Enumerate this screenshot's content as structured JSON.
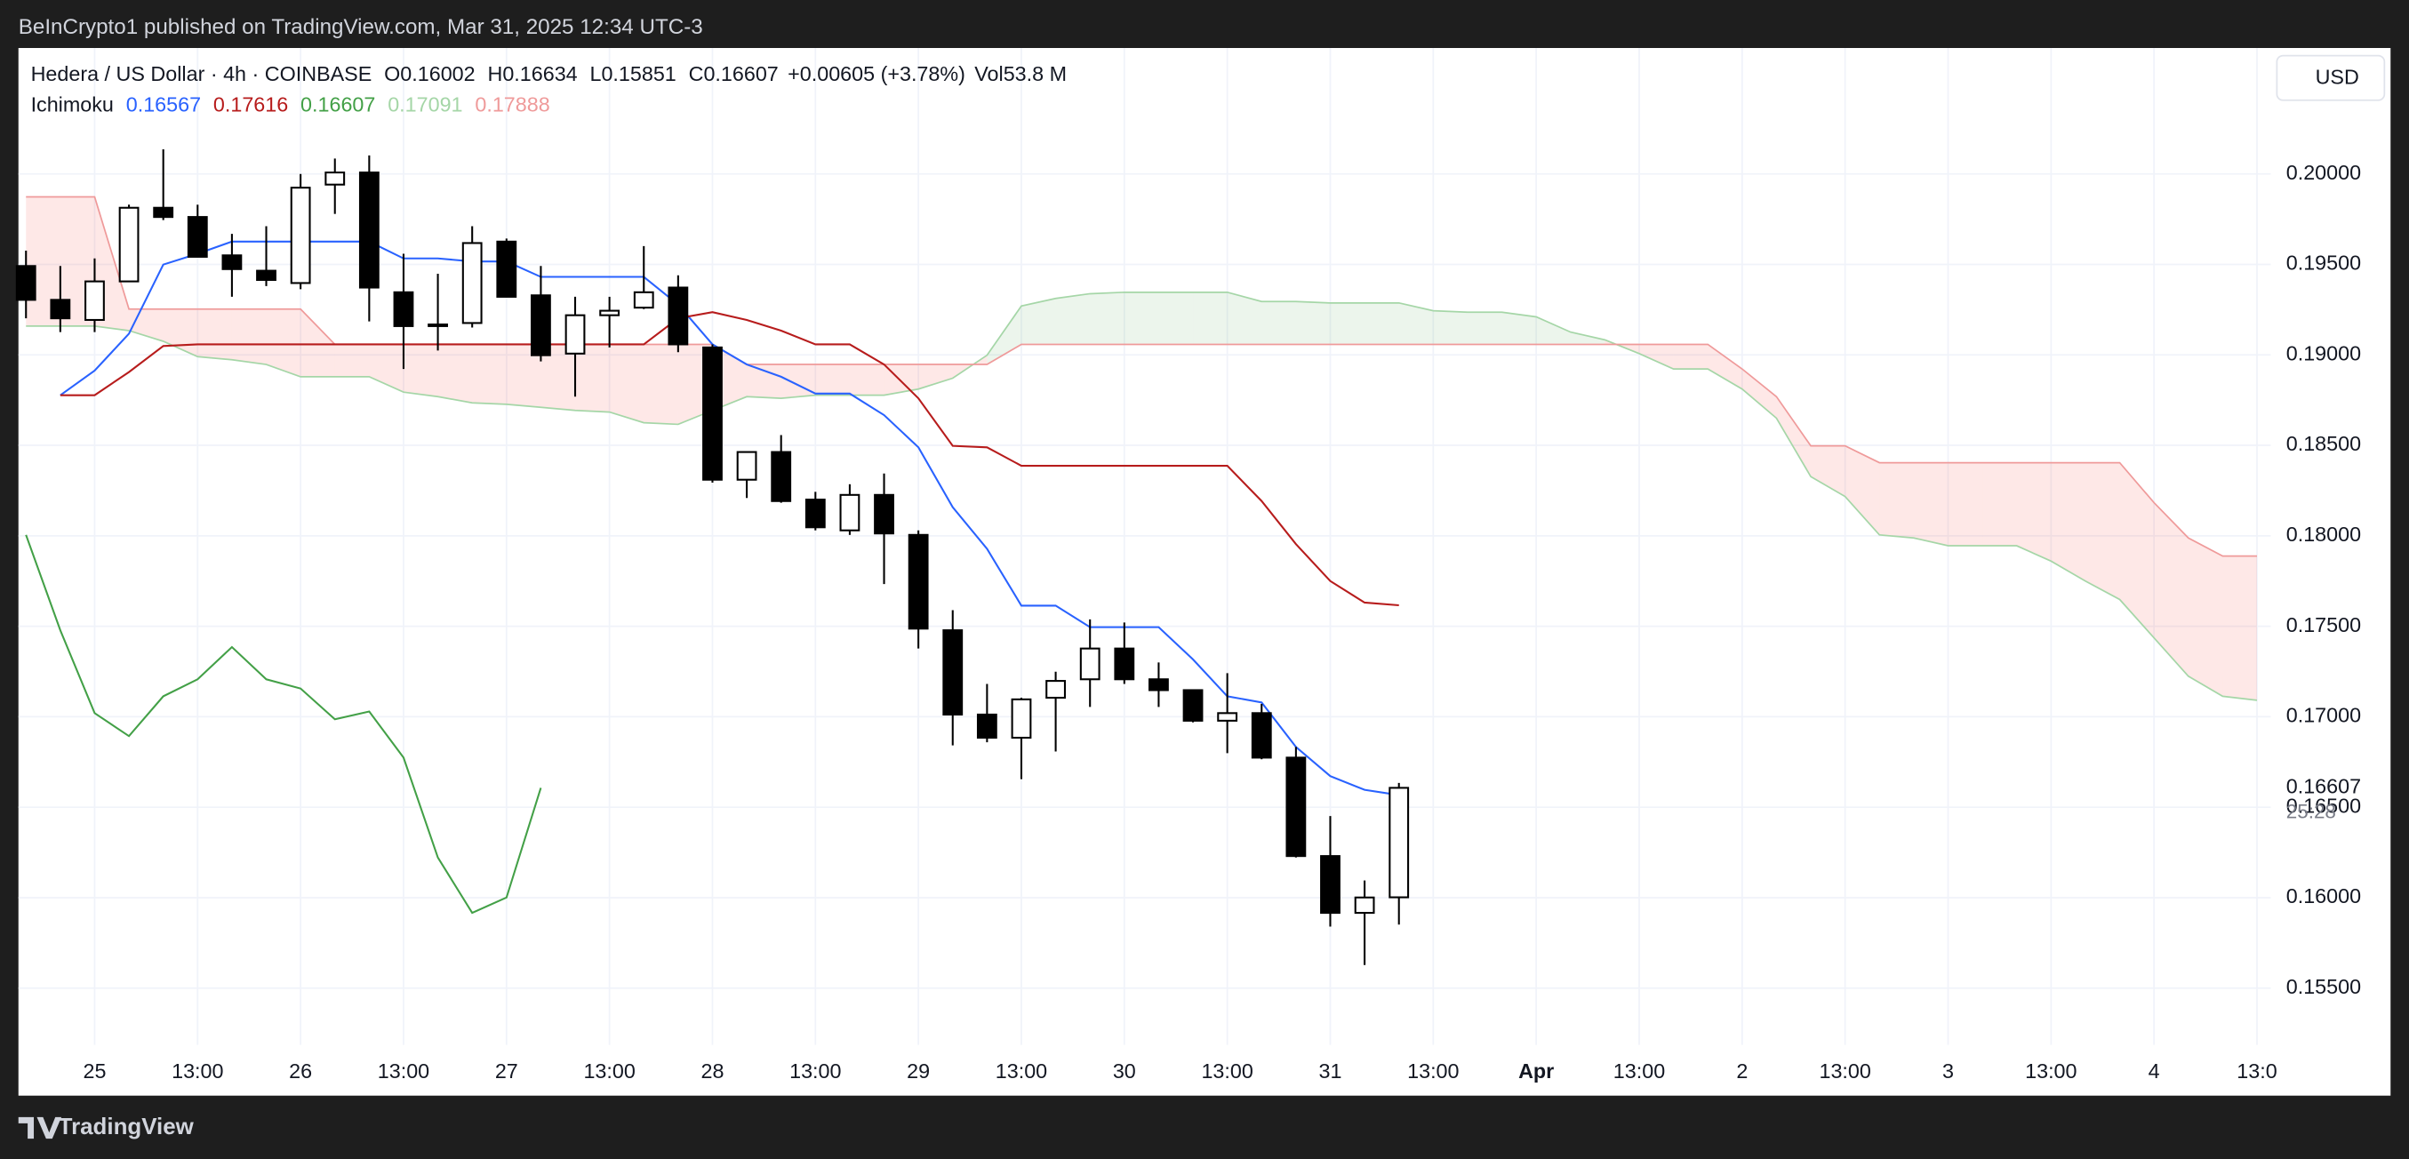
{
  "chart_data": {
    "type": "candlestick",
    "published": "BeInCrypto1 published on TradingView.com, Mar 31, 2025 12:34 UTC-3",
    "symbol": "Hedera / US Dollar · 4h · COINBASE",
    "ohlc_prefixes": [
      "O",
      "H",
      "L",
      "C"
    ],
    "change": "+0.00605 (+3.78%)",
    "volume": "Vol53.8 M",
    "indicator": "Ichimoku",
    "currency": "USD",
    "countdown": "25:28",
    "brand": "TradingView",
    "up_color": "#ffffff",
    "down_color": "#000000",
    "wick_color": "#000000",
    "x": [
      0,
      1,
      2,
      3,
      4,
      5,
      6,
      7,
      8,
      9,
      10,
      11,
      12,
      13,
      14,
      15,
      16,
      17,
      18,
      19,
      20,
      21,
      22,
      23,
      24,
      25,
      26,
      27,
      28,
      29,
      30,
      31,
      32,
      33,
      34,
      35,
      36,
      37,
      38,
      39,
      40
    ],
    "open": [
      0.19491,
      0.19304,
      0.19193,
      0.19406,
      0.19813,
      0.19762,
      0.1955,
      0.19465,
      0.19397,
      0.19941,
      0.20008,
      0.19346,
      0.19159,
      0.19176,
      0.19626,
      0.19329,
      0.19007,
      0.19219,
      0.19261,
      0.19372,
      0.19041,
      0.1831,
      0.18463,
      0.182,
      0.1803,
      0.18226,
      0.18005,
      0.17478,
      0.17012,
      0.16884,
      0.17105,
      0.17207,
      0.17377,
      0.17207,
      0.17147,
      0.16978,
      0.1702,
      0.16774,
      0.1623,
      0.15916,
      0.16002
    ],
    "high": [
      0.19576,
      0.19491,
      0.19533,
      0.1983,
      0.20136,
      0.1983,
      0.19669,
      0.19711,
      0.2,
      0.20085,
      0.20102,
      0.19559,
      0.19448,
      0.19711,
      0.19643,
      0.19491,
      0.19321,
      0.19321,
      0.19601,
      0.1944,
      0.19058,
      0.18463,
      0.18557,
      0.18243,
      0.18285,
      0.18344,
      0.1803,
      0.17589,
      0.17181,
      0.17105,
      0.17249,
      0.17538,
      0.17521,
      0.173,
      0.17147,
      0.17241,
      0.17071,
      0.16833,
      0.16451,
      0.16095,
      0.16634
    ],
    "low": [
      0.19202,
      0.19126,
      0.19126,
      0.19406,
      0.19745,
      0.19542,
      0.19321,
      0.1938,
      0.19363,
      0.19779,
      0.19185,
      0.18922,
      0.19024,
      0.19151,
      0.19321,
      0.18964,
      0.18769,
      0.19041,
      0.19253,
      0.19015,
      0.18294,
      0.18209,
      0.18183,
      0.1803,
      0.18005,
      0.17733,
      0.17377,
      0.16842,
      0.16859,
      0.16655,
      0.16808,
      0.17054,
      0.17181,
      0.17054,
      0.16969,
      0.16799,
      0.16765,
      0.16222,
      0.1584,
      0.15628,
      0.15851
    ],
    "close": [
      0.19304,
      0.19202,
      0.19406,
      0.19813,
      0.19762,
      0.19542,
      0.19474,
      0.19414,
      0.19924,
      0.20008,
      0.19372,
      0.19159,
      0.19168,
      0.19618,
      0.19321,
      0.18998,
      0.19219,
      0.19244,
      0.19346,
      0.19058,
      0.1831,
      0.18463,
      0.18192,
      0.18047,
      0.18226,
      0.18013,
      0.17487,
      0.17012,
      0.16884,
      0.17096,
      0.17198,
      0.17377,
      0.17207,
      0.17147,
      0.16978,
      0.1702,
      0.16774,
      0.1623,
      0.15916,
      0.16001,
      0.16607
    ],
    "lines": [
      {
        "color": "#2962ff",
        "x": [
          1,
          2,
          3,
          4,
          5,
          6,
          7,
          8,
          9,
          10,
          11,
          12,
          13,
          14,
          15,
          16,
          17,
          18,
          19,
          20,
          21,
          22,
          23,
          24,
          25,
          26,
          27,
          28,
          29,
          30,
          31,
          32,
          33,
          34,
          35,
          36,
          37,
          38,
          39,
          40
        ],
        "values": [
          0.18777,
          0.18913,
          0.19117,
          0.19499,
          0.19559,
          0.19626,
          0.19626,
          0.19626,
          0.19626,
          0.19626,
          0.19533,
          0.19533,
          0.19516,
          0.19516,
          0.19431,
          0.19431,
          0.19431,
          0.19431,
          0.19278,
          0.19058,
          0.18947,
          0.18879,
          0.18786,
          0.18786,
          0.18667,
          0.18489,
          0.18158,
          0.17928,
          0.17614,
          0.17614,
          0.17495,
          0.17495,
          0.17495,
          0.17317,
          0.17113,
          0.17079,
          0.16833,
          0.16672,
          0.16596,
          0.16567
        ]
      },
      {
        "color": "#b71c1c",
        "x": [
          1,
          2,
          3,
          4,
          5,
          6,
          7,
          8,
          9,
          10,
          11,
          12,
          13,
          14,
          15,
          16,
          17,
          18,
          19,
          20,
          21,
          22,
          23,
          24,
          25,
          26,
          27,
          28,
          29,
          30,
          31,
          32,
          33,
          34,
          35,
          36,
          37,
          38,
          39,
          40
        ],
        "values": [
          0.18777,
          0.18777,
          0.18905,
          0.19049,
          0.19058,
          0.19058,
          0.19058,
          0.19058,
          0.19058,
          0.19058,
          0.19058,
          0.19058,
          0.19058,
          0.19058,
          0.19058,
          0.19058,
          0.19058,
          0.19058,
          0.19202,
          0.19236,
          0.19193,
          0.19134,
          0.19058,
          0.19058,
          0.18947,
          0.1876,
          0.18497,
          0.18489,
          0.18387,
          0.18387,
          0.18387,
          0.18387,
          0.18387,
          0.18387,
          0.18387,
          0.18192,
          0.17954,
          0.1775,
          0.17631,
          0.17616
        ]
      },
      {
        "color": "#43a047",
        "x": [
          0,
          1,
          2,
          3,
          4,
          5,
          6,
          7,
          8,
          9,
          10,
          11,
          12,
          13,
          14,
          15
        ],
        "values": [
          0.18005,
          0.17478,
          0.1702,
          0.16893,
          0.17113,
          0.17207,
          0.17385,
          0.17207,
          0.17156,
          0.16986,
          0.17029,
          0.16774,
          0.16222,
          0.15916,
          0.16001,
          0.16607
        ]
      }
    ],
    "cloud": {
      "up_fill": "rgba(67,160,71,0.1)",
      "down_fill": "rgba(244,67,54,0.12)",
      "span_a": {
        "color": "#a5d6a7",
        "x": [
          0,
          1,
          2,
          3,
          4,
          5,
          6,
          7,
          8,
          9,
          10,
          11,
          12,
          13,
          14,
          15,
          16,
          17,
          18,
          19,
          20,
          21,
          22,
          23,
          24,
          25,
          26,
          27,
          28,
          29,
          30,
          31,
          32,
          33,
          34,
          35,
          36,
          37,
          38,
          39,
          40,
          41,
          42,
          43,
          44,
          45,
          46,
          47,
          48,
          49,
          50,
          51,
          52,
          53,
          54,
          55,
          56,
          57,
          58,
          59,
          60,
          61,
          62,
          63,
          64,
          65
        ],
        "values": [
          0.19159,
          0.19159,
          0.19159,
          0.19134,
          0.19075,
          0.1899,
          0.18973,
          0.18947,
          0.18879,
          0.18879,
          0.18879,
          0.18794,
          0.18769,
          0.18735,
          0.18727,
          0.1871,
          0.18693,
          0.18684,
          0.18625,
          0.18616,
          0.18693,
          0.18769,
          0.1876,
          0.18777,
          0.18777,
          0.18777,
          0.18811,
          0.18871,
          0.18998,
          0.1927,
          0.19312,
          0.19338,
          0.19346,
          0.19346,
          0.19346,
          0.19346,
          0.19295,
          0.19295,
          0.19287,
          0.19287,
          0.19287,
          0.19244,
          0.19236,
          0.19236,
          0.1921,
          0.19126,
          0.19083,
          0.19007,
          0.18922,
          0.18922,
          0.18811,
          0.1865,
          0.18327,
          0.18217,
          0.18005,
          0.17988,
          0.17945,
          0.17945,
          0.17945,
          0.1786,
          0.1775,
          0.17648,
          0.17436,
          0.17224,
          0.17113,
          0.17091
        ]
      },
      "span_b": {
        "color": "#ef9a9a",
        "x": [
          0,
          1,
          2,
          3,
          4,
          5,
          6,
          7,
          8,
          9,
          10,
          11,
          12,
          13,
          14,
          15,
          16,
          17,
          18,
          19,
          20,
          21,
          22,
          23,
          24,
          25,
          26,
          27,
          28,
          29,
          30,
          31,
          32,
          33,
          34,
          35,
          36,
          37,
          38,
          39,
          40,
          41,
          42,
          43,
          44,
          45,
          46,
          47,
          48,
          49,
          50,
          51,
          52,
          53,
          54,
          55,
          56,
          57,
          58,
          59,
          60,
          61,
          62,
          63,
          64,
          65
        ],
        "values": [
          0.19873,
          0.19873,
          0.19873,
          0.19253,
          0.19253,
          0.19253,
          0.19253,
          0.19253,
          0.19253,
          0.19058,
          0.19058,
          0.19058,
          0.19058,
          0.19058,
          0.19058,
          0.19058,
          0.19058,
          0.19058,
          0.19058,
          0.19058,
          0.19058,
          0.18947,
          0.18947,
          0.18947,
          0.18947,
          0.18947,
          0.18947,
          0.18947,
          0.18947,
          0.19058,
          0.19058,
          0.19058,
          0.19058,
          0.19058,
          0.19058,
          0.19058,
          0.19058,
          0.19058,
          0.19058,
          0.19058,
          0.19058,
          0.19058,
          0.19058,
          0.19058,
          0.19058,
          0.19058,
          0.19058,
          0.19058,
          0.19058,
          0.19058,
          0.18922,
          0.18769,
          0.18497,
          0.18497,
          0.18404,
          0.18404,
          0.18404,
          0.18404,
          0.18404,
          0.18404,
          0.18404,
          0.18404,
          0.18183,
          0.17988,
          0.17888,
          0.17888
        ]
      }
    },
    "xlim": [
      -0.22,
      65.4
    ],
    "ylim": [
      0.15186,
      0.20696
    ],
    "xticks": [
      {
        "value": 2,
        "label": "25"
      },
      {
        "value": 5,
        "label": "13:00"
      },
      {
        "value": 8,
        "label": "26"
      },
      {
        "value": 11,
        "label": "13:00"
      },
      {
        "value": 14,
        "label": "27"
      },
      {
        "value": 17,
        "label": "13:00"
      },
      {
        "value": 20,
        "label": "28"
      },
      {
        "value": 23,
        "label": "13:00"
      },
      {
        "value": 26,
        "label": "29"
      },
      {
        "value": 29,
        "label": "13:00"
      },
      {
        "value": 32,
        "label": "30"
      },
      {
        "value": 35,
        "label": "13:00"
      },
      {
        "value": 38,
        "label": "31"
      },
      {
        "value": 41,
        "label": "13:00"
      },
      {
        "value": 44,
        "label": "Apr"
      },
      {
        "value": 47,
        "label": "13:00"
      },
      {
        "value": 50,
        "label": "2"
      },
      {
        "value": 53,
        "label": "13:00"
      },
      {
        "value": 56,
        "label": "3"
      },
      {
        "value": 59,
        "label": "13:00"
      },
      {
        "value": 62,
        "label": "4"
      },
      {
        "value": 65,
        "label": "13:0"
      }
    ],
    "yticks": [
      {
        "value": 0.155,
        "label": "0.15500"
      },
      {
        "value": 0.16,
        "label": "0.16000"
      },
      {
        "value": 0.165,
        "label": "0.16500"
      },
      {
        "value": 0.17,
        "label": "0.17000"
      },
      {
        "value": 0.175,
        "label": "0.17500"
      },
      {
        "value": 0.18,
        "label": "0.18000"
      },
      {
        "value": 0.185,
        "label": "0.18500"
      },
      {
        "value": 0.19,
        "label": "0.19000"
      },
      {
        "value": 0.195,
        "label": "0.19500"
      },
      {
        "value": 0.2,
        "label": "0.20000"
      }
    ],
    "grid": true
  }
}
